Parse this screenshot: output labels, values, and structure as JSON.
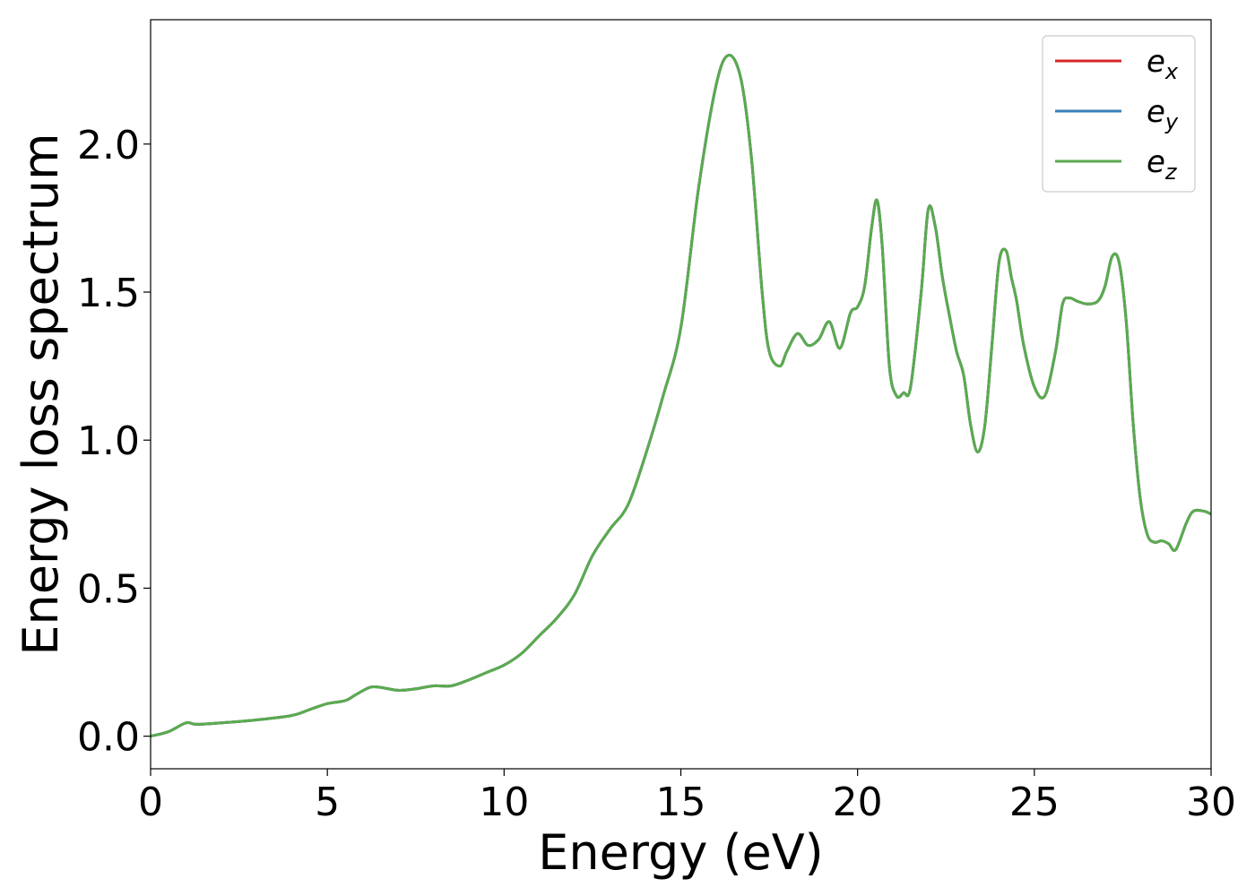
{
  "chart_data": {
    "type": "line",
    "title": "",
    "xlabel": "Energy (eV)",
    "ylabel": "Energy loss spectrum",
    "xlim": [
      0,
      30
    ],
    "ylim": [
      -0.11,
      2.42
    ],
    "xticks": [
      0,
      5,
      10,
      15,
      20,
      25,
      30
    ],
    "xtick_labels": [
      "0",
      "5",
      "10",
      "15",
      "20",
      "25",
      "30"
    ],
    "yticks": [
      0.0,
      0.5,
      1.0,
      1.5,
      2.0
    ],
    "ytick_labels": [
      "0.0",
      "0.5",
      "1.0",
      "1.5",
      "2.0"
    ],
    "grid": false,
    "legend_position": "top-right",
    "x": [
      0,
      0.5,
      1.0,
      1.3,
      2.0,
      3.0,
      4.0,
      4.5,
      5.0,
      5.5,
      5.8,
      6.2,
      6.5,
      7.0,
      7.5,
      8.0,
      8.5,
      9.0,
      9.5,
      10.0,
      10.5,
      11.0,
      11.5,
      12.0,
      12.5,
      13.0,
      13.5,
      14.0,
      14.5,
      15.0,
      15.5,
      16.0,
      16.35,
      16.7,
      17.0,
      17.3,
      17.5,
      17.8,
      18.0,
      18.3,
      18.6,
      18.9,
      19.2,
      19.5,
      19.8,
      20.0,
      20.2,
      20.4,
      20.55,
      20.7,
      20.9,
      21.1,
      21.3,
      21.5,
      21.8,
      22.0,
      22.2,
      22.4,
      22.6,
      22.8,
      23.0,
      23.2,
      23.4,
      23.6,
      23.8,
      24.0,
      24.2,
      24.35,
      24.5,
      24.7,
      25.0,
      25.3,
      25.6,
      25.8,
      26.0,
      26.2,
      26.5,
      26.8,
      27.0,
      27.2,
      27.4,
      27.6,
      27.8,
      28.0,
      28.2,
      28.4,
      28.6,
      28.8,
      29.0,
      29.3,
      29.5,
      29.8,
      30.0
    ],
    "series": [
      {
        "name": "e",
        "name_sub": "x",
        "color": "#d62728",
        "values": [
          0.0,
          0.015,
          0.045,
          0.04,
          0.045,
          0.055,
          0.07,
          0.09,
          0.11,
          0.12,
          0.14,
          0.165,
          0.165,
          0.155,
          0.16,
          0.17,
          0.17,
          0.19,
          0.215,
          0.24,
          0.28,
          0.34,
          0.4,
          0.48,
          0.61,
          0.7,
          0.78,
          0.95,
          1.15,
          1.38,
          1.85,
          2.2,
          2.3,
          2.22,
          1.95,
          1.5,
          1.3,
          1.25,
          1.3,
          1.36,
          1.32,
          1.34,
          1.4,
          1.31,
          1.43,
          1.45,
          1.52,
          1.72,
          1.81,
          1.65,
          1.25,
          1.15,
          1.16,
          1.18,
          1.5,
          1.78,
          1.72,
          1.55,
          1.42,
          1.3,
          1.22,
          1.05,
          0.96,
          1.05,
          1.32,
          1.6,
          1.64,
          1.55,
          1.47,
          1.32,
          1.18,
          1.15,
          1.3,
          1.46,
          1.48,
          1.47,
          1.46,
          1.47,
          1.52,
          1.62,
          1.6,
          1.4,
          1.05,
          0.8,
          0.68,
          0.655,
          0.66,
          0.65,
          0.63,
          0.72,
          0.76,
          0.76,
          0.75
        ]
      },
      {
        "name": "e",
        "name_sub": "y",
        "color": "#3a7fb8",
        "values": [
          0.0,
          0.015,
          0.045,
          0.04,
          0.045,
          0.055,
          0.07,
          0.09,
          0.11,
          0.12,
          0.14,
          0.165,
          0.165,
          0.155,
          0.16,
          0.17,
          0.17,
          0.19,
          0.215,
          0.24,
          0.28,
          0.34,
          0.4,
          0.48,
          0.61,
          0.7,
          0.78,
          0.95,
          1.15,
          1.38,
          1.85,
          2.2,
          2.3,
          2.22,
          1.95,
          1.5,
          1.3,
          1.25,
          1.3,
          1.36,
          1.32,
          1.34,
          1.4,
          1.31,
          1.43,
          1.45,
          1.52,
          1.72,
          1.81,
          1.65,
          1.25,
          1.15,
          1.16,
          1.18,
          1.5,
          1.78,
          1.72,
          1.55,
          1.42,
          1.3,
          1.22,
          1.05,
          0.96,
          1.05,
          1.32,
          1.6,
          1.64,
          1.55,
          1.47,
          1.32,
          1.18,
          1.15,
          1.3,
          1.46,
          1.48,
          1.47,
          1.46,
          1.47,
          1.52,
          1.62,
          1.6,
          1.4,
          1.05,
          0.8,
          0.68,
          0.655,
          0.66,
          0.65,
          0.63,
          0.72,
          0.76,
          0.76,
          0.75
        ]
      },
      {
        "name": "e",
        "name_sub": "z",
        "color": "#5aab4f",
        "values": [
          0.0,
          0.015,
          0.045,
          0.04,
          0.045,
          0.055,
          0.07,
          0.09,
          0.11,
          0.12,
          0.14,
          0.165,
          0.165,
          0.155,
          0.16,
          0.17,
          0.17,
          0.19,
          0.215,
          0.24,
          0.28,
          0.34,
          0.4,
          0.48,
          0.61,
          0.7,
          0.78,
          0.95,
          1.15,
          1.38,
          1.85,
          2.2,
          2.3,
          2.22,
          1.95,
          1.5,
          1.3,
          1.25,
          1.3,
          1.36,
          1.32,
          1.34,
          1.4,
          1.31,
          1.43,
          1.45,
          1.52,
          1.72,
          1.81,
          1.65,
          1.25,
          1.15,
          1.16,
          1.18,
          1.5,
          1.78,
          1.72,
          1.55,
          1.42,
          1.3,
          1.22,
          1.05,
          0.96,
          1.05,
          1.32,
          1.6,
          1.64,
          1.55,
          1.47,
          1.32,
          1.18,
          1.15,
          1.3,
          1.46,
          1.48,
          1.47,
          1.46,
          1.47,
          1.52,
          1.62,
          1.6,
          1.4,
          1.05,
          0.8,
          0.68,
          0.655,
          0.66,
          0.65,
          0.63,
          0.72,
          0.76,
          0.76,
          0.75
        ]
      }
    ]
  }
}
